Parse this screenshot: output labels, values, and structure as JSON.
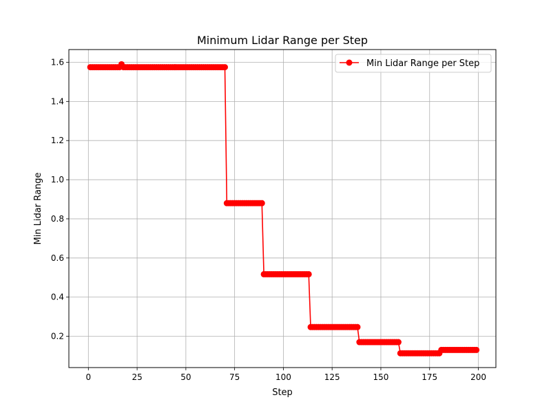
{
  "chart_data": {
    "type": "line",
    "title": "Minimum Lidar Range per Step",
    "xlabel": "Step",
    "ylabel": "Min Lidar Range",
    "xlim": [
      -10,
      209
    ],
    "ylim": [
      0.04,
      1.665
    ],
    "xticks": [
      0,
      25,
      50,
      75,
      100,
      125,
      150,
      175,
      200
    ],
    "yticks": [
      0.2,
      0.4,
      0.6,
      0.8,
      1.0,
      1.2,
      1.4,
      1.6
    ],
    "ytick_labels": [
      "0.2",
      "0.4",
      "0.6",
      "0.8",
      "1.0",
      "1.2",
      "1.4",
      "1.6"
    ],
    "grid": true,
    "legend_position": "top-right",
    "series": [
      {
        "name": "Min Lidar Range per Step",
        "color": "#ff0000",
        "marker": "circle",
        "segments": [
          {
            "from": 1,
            "to": 16,
            "value": 1.575
          },
          {
            "from": 17,
            "to": 17,
            "value": 1.59
          },
          {
            "from": 18,
            "to": 70,
            "value": 1.575
          },
          {
            "from": 71,
            "to": 89,
            "value": 0.88
          },
          {
            "from": 90,
            "to": 113,
            "value": 0.517
          },
          {
            "from": 114,
            "to": 138,
            "value": 0.247
          },
          {
            "from": 139,
            "to": 159,
            "value": 0.17
          },
          {
            "from": 160,
            "to": 180,
            "value": 0.113
          },
          {
            "from": 181,
            "to": 199,
            "value": 0.13
          }
        ]
      }
    ]
  }
}
